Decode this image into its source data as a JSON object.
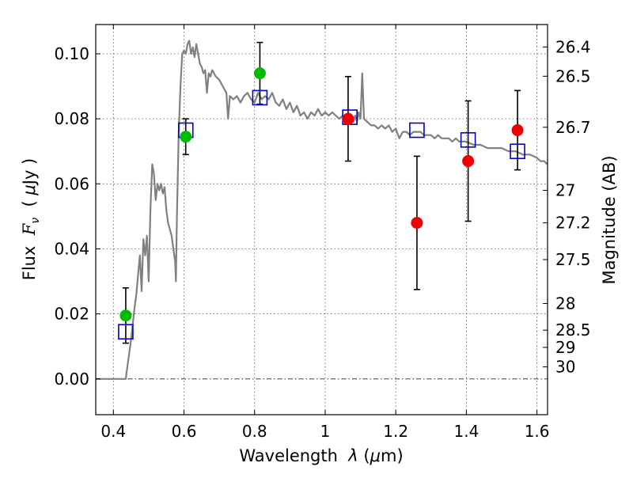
{
  "chart_data": {
    "type": "scatter",
    "xlabel_parts": [
      "Wavelength  ",
      "λ",
      " (",
      "μ",
      "m)"
    ],
    "ylabel_parts": [
      "Flux  ",
      "F",
      "ν",
      "  ( ",
      "μ",
      "Jy )"
    ],
    "right_ylabel": "Magnitude (AB)",
    "xlim": [
      0.35,
      1.63
    ],
    "ylim": [
      -0.011,
      0.109
    ],
    "grid": true,
    "x_ticks": [
      {
        "value": 0.4,
        "label": "0.4"
      },
      {
        "value": 0.6,
        "label": "0.6"
      },
      {
        "value": 0.8,
        "label": "0.8"
      },
      {
        "value": 1.0,
        "label": "1"
      },
      {
        "value": 1.2,
        "label": "1.2"
      },
      {
        "value": 1.4,
        "label": "1.4"
      },
      {
        "value": 1.6,
        "label": "1.6"
      }
    ],
    "y_ticks": [
      {
        "value": 0.0,
        "label": "0.00"
      },
      {
        "value": 0.02,
        "label": "0.02"
      },
      {
        "value": 0.04,
        "label": "0.04"
      },
      {
        "value": 0.06,
        "label": "0.06"
      },
      {
        "value": 0.08,
        "label": "0.08"
      },
      {
        "value": 0.1,
        "label": "0.10"
      }
    ],
    "magnitude_ticks": [
      {
        "value": 0.1021,
        "label": "26.4"
      },
      {
        "value": 0.0931,
        "label": "26.5"
      },
      {
        "value": 0.0774,
        "label": "26.7"
      },
      {
        "value": 0.058,
        "label": "27"
      },
      {
        "value": 0.048,
        "label": "27.2"
      },
      {
        "value": 0.0367,
        "label": "27.5"
      },
      {
        "value": 0.0232,
        "label": "28"
      },
      {
        "value": 0.015,
        "label": "28.5"
      },
      {
        "value": 0.0097,
        "label": "29"
      },
      {
        "value": 0.0037,
        "label": "30"
      }
    ],
    "sed_model": {
      "color": "#808080",
      "points": [
        [
          0.35,
          0.0
        ],
        [
          0.427,
          0.0
        ],
        [
          0.435,
          0.0
        ],
        [
          0.44,
          0.004
        ],
        [
          0.45,
          0.012
        ],
        [
          0.46,
          0.022
        ],
        [
          0.465,
          0.026
        ],
        [
          0.47,
          0.032
        ],
        [
          0.475,
          0.038
        ],
        [
          0.48,
          0.027
        ],
        [
          0.485,
          0.043
        ],
        [
          0.49,
          0.038
        ],
        [
          0.495,
          0.044
        ],
        [
          0.5,
          0.03
        ],
        [
          0.505,
          0.052
        ],
        [
          0.51,
          0.066
        ],
        [
          0.515,
          0.063
        ],
        [
          0.52,
          0.055
        ],
        [
          0.525,
          0.06
        ],
        [
          0.53,
          0.058
        ],
        [
          0.535,
          0.06
        ],
        [
          0.54,
          0.057
        ],
        [
          0.545,
          0.059
        ],
        [
          0.55,
          0.052
        ],
        [
          0.555,
          0.048
        ],
        [
          0.56,
          0.046
        ],
        [
          0.565,
          0.044
        ],
        [
          0.57,
          0.04
        ],
        [
          0.575,
          0.036
        ],
        [
          0.577,
          0.03
        ],
        [
          0.58,
          0.05
        ],
        [
          0.585,
          0.075
        ],
        [
          0.59,
          0.09
        ],
        [
          0.595,
          0.1
        ],
        [
          0.6,
          0.101
        ],
        [
          0.605,
          0.1
        ],
        [
          0.61,
          0.103
        ],
        [
          0.615,
          0.104
        ],
        [
          0.62,
          0.1
        ],
        [
          0.625,
          0.102
        ],
        [
          0.63,
          0.099
        ],
        [
          0.635,
          0.103
        ],
        [
          0.64,
          0.1
        ],
        [
          0.645,
          0.097
        ],
        [
          0.65,
          0.096
        ],
        [
          0.655,
          0.094
        ],
        [
          0.66,
          0.095
        ],
        [
          0.665,
          0.088
        ],
        [
          0.67,
          0.094
        ],
        [
          0.675,
          0.093
        ],
        [
          0.68,
          0.095
        ],
        [
          0.69,
          0.093
        ],
        [
          0.7,
          0.092
        ],
        [
          0.71,
          0.09
        ],
        [
          0.72,
          0.088
        ],
        [
          0.725,
          0.08
        ],
        [
          0.73,
          0.087
        ],
        [
          0.74,
          0.086
        ],
        [
          0.75,
          0.087
        ],
        [
          0.76,
          0.085
        ],
        [
          0.77,
          0.087
        ],
        [
          0.78,
          0.088
        ],
        [
          0.79,
          0.086
        ],
        [
          0.8,
          0.085
        ],
        [
          0.81,
          0.088
        ],
        [
          0.82,
          0.086
        ],
        [
          0.83,
          0.087
        ],
        [
          0.84,
          0.086
        ],
        [
          0.85,
          0.088
        ],
        [
          0.86,
          0.085
        ],
        [
          0.87,
          0.084
        ],
        [
          0.88,
          0.086
        ],
        [
          0.89,
          0.083
        ],
        [
          0.9,
          0.085
        ],
        [
          0.91,
          0.082
        ],
        [
          0.92,
          0.084
        ],
        [
          0.93,
          0.081
        ],
        [
          0.94,
          0.082
        ],
        [
          0.95,
          0.08
        ],
        [
          0.96,
          0.082
        ],
        [
          0.97,
          0.081
        ],
        [
          0.98,
          0.083
        ],
        [
          0.99,
          0.081
        ],
        [
          1.0,
          0.082
        ],
        [
          1.01,
          0.081
        ],
        [
          1.02,
          0.082
        ],
        [
          1.03,
          0.081
        ],
        [
          1.04,
          0.08
        ],
        [
          1.05,
          0.081
        ],
        [
          1.06,
          0.08
        ],
        [
          1.07,
          0.08
        ],
        [
          1.08,
          0.079
        ],
        [
          1.085,
          0.081
        ],
        [
          1.09,
          0.079
        ],
        [
          1.095,
          0.082
        ],
        [
          1.1,
          0.08
        ],
        [
          1.105,
          0.094
        ],
        [
          1.11,
          0.08
        ],
        [
          1.12,
          0.079
        ],
        [
          1.13,
          0.078
        ],
        [
          1.14,
          0.078
        ],
        [
          1.15,
          0.077
        ],
        [
          1.16,
          0.078
        ],
        [
          1.17,
          0.077
        ],
        [
          1.18,
          0.078
        ],
        [
          1.19,
          0.076
        ],
        [
          1.2,
          0.077
        ],
        [
          1.21,
          0.074
        ],
        [
          1.22,
          0.076
        ],
        [
          1.23,
          0.076
        ],
        [
          1.24,
          0.075
        ],
        [
          1.25,
          0.076
        ],
        [
          1.26,
          0.076
        ],
        [
          1.27,
          0.076
        ],
        [
          1.28,
          0.075
        ],
        [
          1.29,
          0.075
        ],
        [
          1.3,
          0.075
        ],
        [
          1.31,
          0.074
        ],
        [
          1.32,
          0.075
        ],
        [
          1.33,
          0.074
        ],
        [
          1.34,
          0.074
        ],
        [
          1.35,
          0.074
        ],
        [
          1.36,
          0.073
        ],
        [
          1.37,
          0.074
        ],
        [
          1.38,
          0.073
        ],
        [
          1.39,
          0.073
        ],
        [
          1.4,
          0.073
        ],
        [
          1.42,
          0.072
        ],
        [
          1.44,
          0.072
        ],
        [
          1.46,
          0.071
        ],
        [
          1.48,
          0.071
        ],
        [
          1.5,
          0.071
        ],
        [
          1.52,
          0.07
        ],
        [
          1.54,
          0.07
        ],
        [
          1.56,
          0.069
        ],
        [
          1.58,
          0.069
        ],
        [
          1.6,
          0.068
        ],
        [
          1.61,
          0.067
        ],
        [
          1.62,
          0.067
        ],
        [
          1.63,
          0.066
        ]
      ]
    },
    "model_photometry": {
      "marker": "open-square",
      "color": "#0000cc",
      "points": [
        {
          "x": 0.435,
          "y": 0.0145
        },
        {
          "x": 0.605,
          "y": 0.0765
        },
        {
          "x": 0.815,
          "y": 0.0865
        },
        {
          "x": 1.07,
          "y": 0.0805
        },
        {
          "x": 1.26,
          "y": 0.0765
        },
        {
          "x": 1.405,
          "y": 0.0735
        },
        {
          "x": 1.545,
          "y": 0.07
        }
      ]
    },
    "observed_optical": {
      "marker": "filled-circle",
      "color": "#00bb00",
      "points": [
        {
          "x": 0.435,
          "y": 0.0195,
          "yerr_lo": 0.0085,
          "yerr_hi": 0.0085
        },
        {
          "x": 0.605,
          "y": 0.0745,
          "yerr_lo": 0.0055,
          "yerr_hi": 0.0055
        },
        {
          "x": 0.815,
          "y": 0.094,
          "yerr_lo": 0.0095,
          "yerr_hi": 0.0095
        }
      ]
    },
    "observed_nir": {
      "marker": "filled-circle",
      "color": "#ee0000",
      "points": [
        {
          "x": 1.065,
          "y": 0.08,
          "yerr_lo": 0.013,
          "yerr_hi": 0.013
        },
        {
          "x": 1.26,
          "y": 0.048,
          "yerr_lo": 0.0205,
          "yerr_hi": 0.0205
        },
        {
          "x": 1.405,
          "y": 0.067,
          "yerr_lo": 0.0185,
          "yerr_hi": 0.0185
        },
        {
          "x": 1.545,
          "y": 0.0765,
          "yerr_lo": 0.0122,
          "yerr_hi": 0.0122
        }
      ]
    },
    "zero_line": {
      "y": 0.0,
      "style": "dash-dot"
    },
    "colors": {
      "errorbar": "#000000",
      "grid": "#555555",
      "frame": "#000000"
    }
  }
}
